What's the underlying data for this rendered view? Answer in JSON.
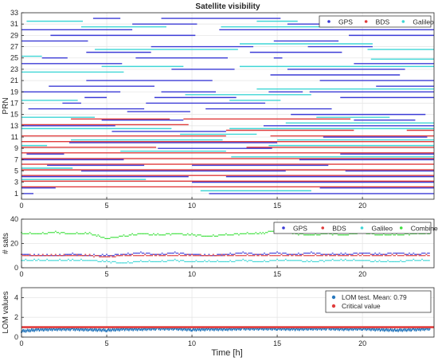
{
  "figure": {
    "time_label": "Time [h]"
  },
  "chart_data": [
    {
      "type": "timeline",
      "title": "Satellite visibility",
      "ylabel": "PRN",
      "xlim": [
        0,
        24.2
      ],
      "ylim": [
        0,
        33
      ],
      "xticks": [
        0,
        5,
        10,
        15,
        20
      ],
      "yticks": [
        1,
        3,
        5,
        7,
        9,
        11,
        13,
        15,
        17,
        19,
        21,
        23,
        25,
        27,
        29,
        31,
        33
      ],
      "grid": true,
      "legend": {
        "location": "top-right",
        "entries": [
          "GPS",
          "BDS",
          "Galileo"
        ]
      },
      "colors": {
        "GPS": "#3b3bd6",
        "BDS": "#e03c3c",
        "Galileo": "#3fd6d6"
      },
      "bars": [
        {
          "prn": 32,
          "system": "GPS",
          "start": 4.2,
          "end": 5.8
        },
        {
          "prn": 32,
          "system": "GPS",
          "start": 8.2,
          "end": 15.2
        },
        {
          "prn": 32,
          "system": "GPS",
          "start": 19.8,
          "end": 23.8
        },
        {
          "prn": 31.5,
          "system": "Galileo",
          "start": 0.3,
          "end": 3.6
        },
        {
          "prn": 31.5,
          "system": "Galileo",
          "start": 13.8,
          "end": 16.2
        },
        {
          "prn": 31.5,
          "system": "Galileo",
          "start": 18.3,
          "end": 22.5
        },
        {
          "prn": 31,
          "system": "GPS",
          "start": 6.5,
          "end": 10.3
        },
        {
          "prn": 31,
          "system": "GPS",
          "start": 15.6,
          "end": 18.8
        },
        {
          "prn": 30.5,
          "system": "Galileo",
          "start": 3.5,
          "end": 8.5
        },
        {
          "prn": 30.5,
          "system": "Galileo",
          "start": 11.7,
          "end": 18.3
        },
        {
          "prn": 30,
          "system": "GPS",
          "start": 0.0,
          "end": 6.5
        },
        {
          "prn": 30,
          "system": "GPS",
          "start": 11.6,
          "end": 24.2
        },
        {
          "prn": 29,
          "system": "GPS",
          "start": 1.7,
          "end": 10.2
        },
        {
          "prn": 29,
          "system": "GPS",
          "start": 19.2,
          "end": 24.2
        },
        {
          "prn": 28,
          "system": "GPS",
          "start": 0.0,
          "end": 3.9
        },
        {
          "prn": 28,
          "system": "GPS",
          "start": 14.8,
          "end": 18.6
        },
        {
          "prn": 27.5,
          "system": "Galileo",
          "start": 12.8,
          "end": 20.6
        },
        {
          "prn": 27,
          "system": "GPS",
          "start": 7.6,
          "end": 13.6
        },
        {
          "prn": 27,
          "system": "GPS",
          "start": 16.8,
          "end": 20.6
        },
        {
          "prn": 26.5,
          "system": "Galileo",
          "start": 4.3,
          "end": 12.7
        },
        {
          "prn": 26.5,
          "system": "Galileo",
          "start": 20.3,
          "end": 24.2
        },
        {
          "prn": 26,
          "system": "GPS",
          "start": 3.8,
          "end": 7.6
        },
        {
          "prn": 26,
          "system": "GPS",
          "start": 13.4,
          "end": 18.8
        },
        {
          "prn": 25.3,
          "system": "Galileo",
          "start": 0.0,
          "end": 1.2
        },
        {
          "prn": 25,
          "system": "GPS",
          "start": 1.2,
          "end": 2.7
        },
        {
          "prn": 25,
          "system": "GPS",
          "start": 6.7,
          "end": 12.1
        },
        {
          "prn": 25,
          "system": "GPS",
          "start": 14.8,
          "end": 15.3
        },
        {
          "prn": 24.8,
          "system": "Galileo",
          "start": 20.5,
          "end": 24.2
        },
        {
          "prn": 24,
          "system": "GPS",
          "start": 0.0,
          "end": 5.9
        },
        {
          "prn": 24,
          "system": "GPS",
          "start": 19.5,
          "end": 24.2
        },
        {
          "prn": 23.5,
          "system": "Galileo",
          "start": 4.7,
          "end": 9.5
        },
        {
          "prn": 23.5,
          "system": "Galileo",
          "start": 12.8,
          "end": 24.2
        },
        {
          "prn": 23,
          "system": "GPS",
          "start": 8.8,
          "end": 12.5
        },
        {
          "prn": 23,
          "system": "GPS",
          "start": 15.6,
          "end": 22.5
        },
        {
          "prn": 22.5,
          "system": "Galileo",
          "start": 0.0,
          "end": 6.0
        },
        {
          "prn": 22,
          "system": "GPS",
          "start": 14.6,
          "end": 22.2
        },
        {
          "prn": 21,
          "system": "GPS",
          "start": 3.8,
          "end": 11.2
        },
        {
          "prn": 21,
          "system": "GPS",
          "start": 17.5,
          "end": 24.2
        },
        {
          "prn": 20,
          "system": "GPS",
          "start": 1.6,
          "end": 7.8
        },
        {
          "prn": 20,
          "system": "GPS",
          "start": 20.8,
          "end": 24.2
        },
        {
          "prn": 19.5,
          "system": "Galileo",
          "start": 13.8,
          "end": 24.2
        },
        {
          "prn": 19,
          "system": "GPS",
          "start": 0.0,
          "end": 5.8
        },
        {
          "prn": 19,
          "system": "GPS",
          "start": 8.2,
          "end": 11.4
        },
        {
          "prn": 19,
          "system": "GPS",
          "start": 14.5,
          "end": 16.5
        },
        {
          "prn": 19,
          "system": "GPS",
          "start": 16.9,
          "end": 24.2
        },
        {
          "prn": 18.5,
          "system": "Galileo",
          "start": 9.6,
          "end": 17.0
        },
        {
          "prn": 18,
          "system": "GPS",
          "start": 3.7,
          "end": 5.0
        },
        {
          "prn": 18,
          "system": "GPS",
          "start": 7.8,
          "end": 12.6
        },
        {
          "prn": 18,
          "system": "GPS",
          "start": 18.7,
          "end": 24.2
        },
        {
          "prn": 17.5,
          "system": "Galileo",
          "start": 0.0,
          "end": 3.3
        },
        {
          "prn": 17.5,
          "system": "Galileo",
          "start": 12.2,
          "end": 15.2
        },
        {
          "prn": 17,
          "system": "GPS",
          "start": 2.4,
          "end": 3.5
        },
        {
          "prn": 17,
          "system": "GPS",
          "start": 7.3,
          "end": 14.3
        },
        {
          "prn": 16,
          "system": "GPS",
          "start": 0.4,
          "end": 7.2
        },
        {
          "prn": 16,
          "system": "GPS",
          "start": 10.8,
          "end": 18.2
        },
        {
          "prn": 15.5,
          "system": "GPS",
          "start": 6.2,
          "end": 9.9
        },
        {
          "prn": 15,
          "system": "GPS",
          "start": 15.8,
          "end": 23.7
        },
        {
          "prn": 14.5,
          "system": "Galileo",
          "start": 0.0,
          "end": 4.3
        },
        {
          "prn": 14.5,
          "system": "Galileo",
          "start": 17.3,
          "end": 21.6
        },
        {
          "prn": 14.2,
          "system": "BDS",
          "start": 2.9,
          "end": 8.7
        },
        {
          "prn": 14.2,
          "system": "BDS",
          "start": 9.5,
          "end": 19.3
        },
        {
          "prn": 14,
          "system": "GPS",
          "start": 4.7,
          "end": 9.5
        },
        {
          "prn": 14,
          "system": "GPS",
          "start": 19.5,
          "end": 23.1
        },
        {
          "prn": 13.5,
          "system": "Galileo",
          "start": 15.5,
          "end": 24.2
        },
        {
          "prn": 13.2,
          "system": "BDS",
          "start": 0.0,
          "end": 9.8
        },
        {
          "prn": 13,
          "system": "GPS",
          "start": 0.0,
          "end": 5.5
        },
        {
          "prn": 13,
          "system": "GPS",
          "start": 14.2,
          "end": 24.2
        },
        {
          "prn": 12.5,
          "system": "Galileo",
          "start": 0.0,
          "end": 8.8
        },
        {
          "prn": 12.5,
          "system": "Galileo",
          "start": 12.2,
          "end": 24.2
        },
        {
          "prn": 12.2,
          "system": "BDS",
          "start": 12.0,
          "end": 19.5
        },
        {
          "prn": 12.2,
          "system": "BDS",
          "start": 22.6,
          "end": 24.2
        },
        {
          "prn": 12,
          "system": "GPS",
          "start": 5.3,
          "end": 12.0
        },
        {
          "prn": 11.5,
          "system": "Galileo",
          "start": 9.3,
          "end": 13.8
        },
        {
          "prn": 11.2,
          "system": "BDS",
          "start": 0.0,
          "end": 12.0
        },
        {
          "prn": 11.2,
          "system": "BDS",
          "start": 14.6,
          "end": 24.2
        },
        {
          "prn": 11,
          "system": "GPS",
          "start": 17.7,
          "end": 23.8
        },
        {
          "prn": 10.5,
          "system": "Galileo",
          "start": 2.9,
          "end": 11.8
        },
        {
          "prn": 10.5,
          "system": "Galileo",
          "start": 15.0,
          "end": 24.2
        },
        {
          "prn": 10.2,
          "system": "BDS",
          "start": 0.0,
          "end": 24.2
        },
        {
          "prn": 10,
          "system": "GPS",
          "start": 2.8,
          "end": 15.0
        },
        {
          "prn": 9.5,
          "system": "Galileo",
          "start": 0.0,
          "end": 1.5
        },
        {
          "prn": 9.5,
          "system": "Galileo",
          "start": 14.5,
          "end": 24.2
        },
        {
          "prn": 9.2,
          "system": "BDS",
          "start": 0.0,
          "end": 7.9
        },
        {
          "prn": 9.2,
          "system": "BDS",
          "start": 13.2,
          "end": 24.2
        },
        {
          "prn": 9,
          "system": "GPS",
          "start": 8.0,
          "end": 14.7
        },
        {
          "prn": 8.5,
          "system": "Galileo",
          "start": 5.8,
          "end": 12.0
        },
        {
          "prn": 8.2,
          "system": "BDS",
          "start": 0.0,
          "end": 24.2
        },
        {
          "prn": 8,
          "system": "GPS",
          "start": 0.3,
          "end": 2.5
        },
        {
          "prn": 8,
          "system": "GPS",
          "start": 18.7,
          "end": 24.2
        },
        {
          "prn": 7.5,
          "system": "Galileo",
          "start": 12.3,
          "end": 24.2
        },
        {
          "prn": 7.2,
          "system": "BDS",
          "start": 0.0,
          "end": 24.2
        },
        {
          "prn": 7,
          "system": "GPS",
          "start": 0.0,
          "end": 6.0
        },
        {
          "prn": 7,
          "system": "GPS",
          "start": 16.3,
          "end": 24.2
        },
        {
          "prn": 6.2,
          "system": "BDS",
          "start": 0.0,
          "end": 24.2
        },
        {
          "prn": 6,
          "system": "GPS",
          "start": 1.5,
          "end": 7.2
        },
        {
          "prn": 6,
          "system": "GPS",
          "start": 10.0,
          "end": 18.0
        },
        {
          "prn": 5.5,
          "system": "Galileo",
          "start": 0.0,
          "end": 3.0
        },
        {
          "prn": 5.2,
          "system": "BDS",
          "start": 0.0,
          "end": 24.2
        },
        {
          "prn": 5,
          "system": "GPS",
          "start": 3.5,
          "end": 15.5
        },
        {
          "prn": 5,
          "system": "GPS",
          "start": 19.0,
          "end": 24.2
        },
        {
          "prn": 4.2,
          "system": "BDS",
          "start": 0.0,
          "end": 24.2
        },
        {
          "prn": 4,
          "system": "GPS",
          "start": 0.0,
          "end": 9.8
        },
        {
          "prn": 4,
          "system": "GPS",
          "start": 12.0,
          "end": 24.2
        },
        {
          "prn": 3.5,
          "system": "Galileo",
          "start": 0.0,
          "end": 7.3
        },
        {
          "prn": 3.2,
          "system": "BDS",
          "start": 0.0,
          "end": 24.2
        },
        {
          "prn": 3,
          "system": "GPS",
          "start": 10.0,
          "end": 24.2
        },
        {
          "prn": 2.2,
          "system": "BDS",
          "start": 0.0,
          "end": 24.2
        },
        {
          "prn": 2,
          "system": "GPS",
          "start": 0.0,
          "end": 2.0
        },
        {
          "prn": 2,
          "system": "GPS",
          "start": 17.5,
          "end": 24.2
        },
        {
          "prn": 1.5,
          "system": "Galileo",
          "start": 10.5,
          "end": 17.0
        },
        {
          "prn": 1,
          "system": "GPS",
          "start": 0.0,
          "end": 0.7
        },
        {
          "prn": 1,
          "system": "GPS",
          "start": 11.0,
          "end": 24.2
        }
      ]
    },
    {
      "type": "scatter",
      "ylabel": "# sats",
      "xlim": [
        0,
        24.2
      ],
      "ylim": [
        0,
        40
      ],
      "xticks": [
        0,
        5,
        10,
        15,
        20
      ],
      "yticks": [
        0,
        20,
        40
      ],
      "grid": true,
      "legend": {
        "location": "top-right",
        "entries": [
          "GPS",
          "BDS",
          "Galileo",
          "Combined"
        ]
      },
      "x": [
        0,
        1,
        2,
        3,
        4,
        5,
        6,
        7,
        8,
        9,
        10,
        11,
        12,
        13,
        14,
        15,
        16,
        17,
        18,
        19,
        20,
        21,
        22,
        23,
        24
      ],
      "series": [
        {
          "name": "GPS",
          "color": "#3b3bd6",
          "values": [
            11,
            10,
            10,
            11,
            10,
            10,
            11,
            12,
            11,
            12,
            11,
            10,
            11,
            12,
            11,
            12,
            11,
            12,
            11,
            11,
            12,
            11,
            12,
            11,
            12
          ]
        },
        {
          "name": "BDS",
          "color": "#e03c3c",
          "values": [
            10,
            10,
            10,
            10,
            10,
            9,
            10,
            10,
            10,
            10,
            10,
            10,
            10,
            10,
            10,
            10,
            10,
            10,
            10,
            10,
            10,
            10,
            10,
            10,
            10
          ]
        },
        {
          "name": "Galileo",
          "color": "#3fd6d6",
          "values": [
            6,
            6,
            6,
            6,
            6,
            5,
            4,
            5,
            5,
            6,
            5,
            5,
            5,
            6,
            5,
            6,
            6,
            5,
            6,
            6,
            6,
            5,
            5,
            6,
            6
          ]
        },
        {
          "name": "Combined",
          "color": "#3ee03e",
          "values": [
            28,
            28,
            29,
            28,
            28,
            24,
            26,
            28,
            27,
            28,
            27,
            26,
            27,
            28,
            28,
            31,
            28,
            27,
            28,
            27,
            29,
            27,
            27,
            28,
            28
          ]
        }
      ]
    },
    {
      "type": "scatter",
      "ylabel": "LOM values",
      "xlabel": "Time [h]",
      "xlim": [
        0,
        24.2
      ],
      "ylim": [
        0,
        5
      ],
      "xticks": [
        0,
        5,
        10,
        15,
        20
      ],
      "yticks": [
        0,
        2,
        4
      ],
      "grid": true,
      "legend": {
        "location": "top-right",
        "entries": [
          "LOM test. Mean: 0.79",
          "Critical value"
        ]
      },
      "critical_value": 1.0,
      "x": [
        0,
        1,
        2,
        3,
        4,
        5,
        6,
        7,
        8,
        9,
        10,
        11,
        12,
        13,
        14,
        15,
        16,
        17,
        18,
        19,
        20,
        21,
        22,
        23,
        24
      ],
      "series": [
        {
          "name": "LOM test. Mean: 0.79",
          "color": "#2878bd",
          "values": [
            0.6,
            0.75,
            0.8,
            0.8,
            0.75,
            0.7,
            0.8,
            0.8,
            0.85,
            0.85,
            0.75,
            0.8,
            0.8,
            0.85,
            0.85,
            0.85,
            0.8,
            0.85,
            0.85,
            0.8,
            0.85,
            0.75,
            0.7,
            0.75,
            0.85
          ]
        },
        {
          "name": "Critical value",
          "color": "#e03c3c",
          "values": [
            1,
            1,
            1,
            1,
            1,
            1,
            1,
            1,
            1,
            1,
            1,
            1,
            1,
            1,
            1,
            1,
            1,
            1,
            1,
            1,
            1,
            1,
            1,
            1,
            1
          ]
        }
      ]
    }
  ]
}
